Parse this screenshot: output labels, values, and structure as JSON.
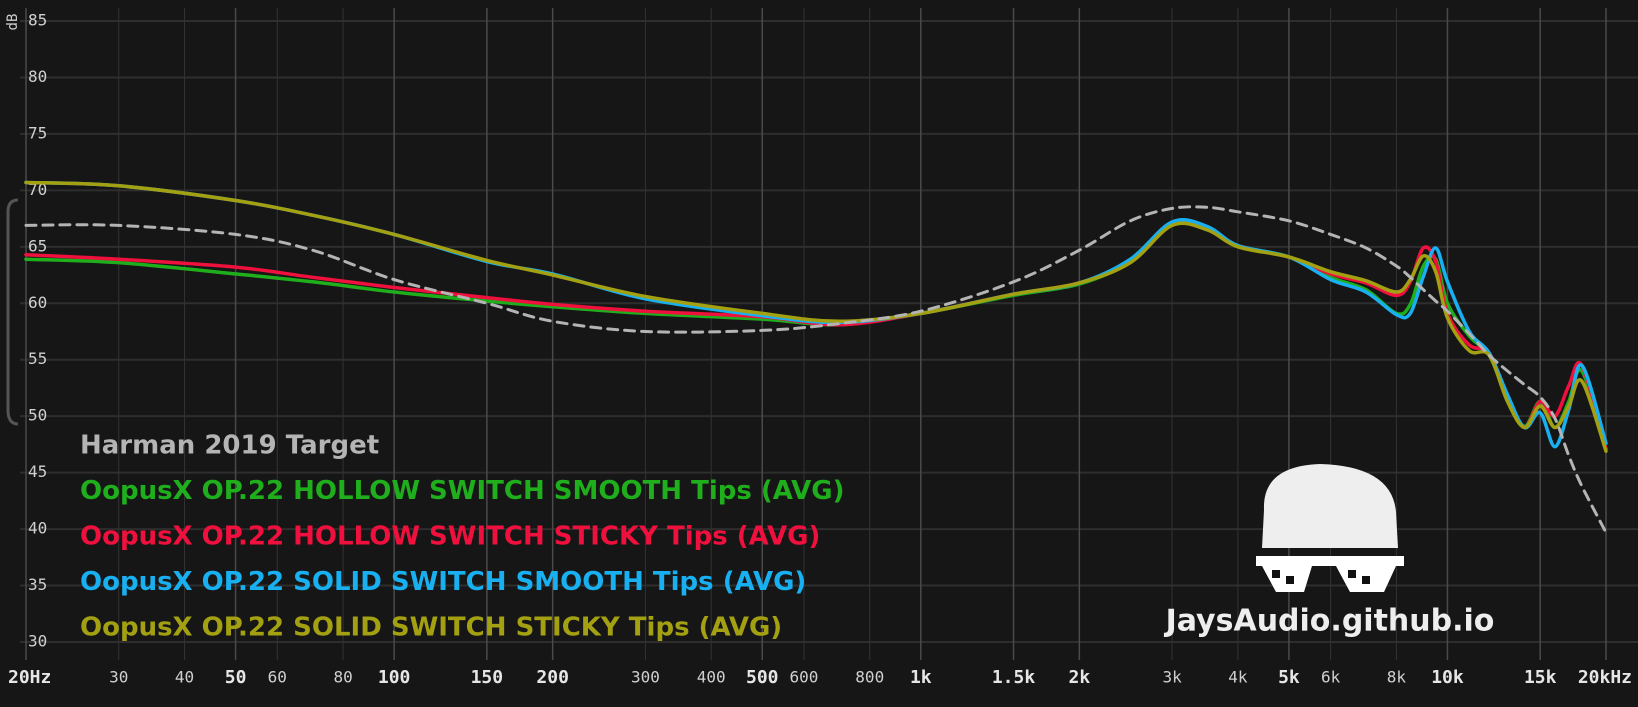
{
  "chart_data": {
    "type": "line",
    "xscale": "log",
    "ylabel": "dB",
    "xlim": [
      20,
      20000
    ],
    "ylim": [
      30,
      85
    ],
    "grid": true,
    "xticks": [
      {
        "value": 20,
        "label": "20Hz"
      },
      30,
      40,
      50,
      60,
      80,
      100,
      150,
      200,
      300,
      400,
      500,
      600,
      800,
      {
        "value": 1000,
        "label": "1k"
      },
      {
        "value": 1500,
        "label": "1.5k"
      },
      {
        "value": 2000,
        "label": "2k"
      },
      {
        "value": 3000,
        "label": "3k"
      },
      {
        "value": 4000,
        "label": "4k"
      },
      {
        "value": 5000,
        "label": "5k"
      },
      {
        "value": 6000,
        "label": "6k"
      },
      {
        "value": 8000,
        "label": "8k"
      },
      {
        "value": 10000,
        "label": "10k"
      },
      {
        "value": 15000,
        "label": "15k"
      },
      {
        "value": 20000,
        "label": "20kHz"
      }
    ],
    "yticks": [
      30,
      35,
      40,
      45,
      50,
      55,
      60,
      65,
      70,
      75,
      80,
      85
    ],
    "x": [
      20,
      30,
      50,
      70,
      100,
      150,
      200,
      300,
      500,
      700,
      1000,
      1500,
      2000,
      2500,
      3000,
      3500,
      4000,
      5000,
      6000,
      7000,
      8000,
      8500,
      9000,
      9500,
      10000,
      11000,
      12000,
      13000,
      14000,
      15000,
      16000,
      17000,
      18000,
      20000
    ],
    "series": [
      {
        "name": "Harman 2019 Target",
        "color": "#b4b4b4",
        "dashed": true,
        "values": [
          66.9,
          66.9,
          66.1,
          64.7,
          62.1,
          60.0,
          58.4,
          57.5,
          57.6,
          58.2,
          59.3,
          61.9,
          64.7,
          67.3,
          68.4,
          68.5,
          68.1,
          67.3,
          66.1,
          64.9,
          63.3,
          62.3,
          61.2,
          60.2,
          59.3,
          57.3,
          55.4,
          54.0,
          52.8,
          51.7,
          49.8,
          46.5,
          43.8,
          39.7
        ]
      },
      {
        "name": "OopusX OP.22 HOLLOW SWITCH SMOOTH Tips (AVG)",
        "color": "#1fae1c",
        "values": [
          63.9,
          63.6,
          62.6,
          61.9,
          61.0,
          60.2,
          59.7,
          59.1,
          58.6,
          58.1,
          59.1,
          60.7,
          61.7,
          63.7,
          67.0,
          66.6,
          65.1,
          64.1,
          62.3,
          61.2,
          59.1,
          59.9,
          63.3,
          63.9,
          60.0,
          57.1,
          55.4,
          51.7,
          49.1,
          51.3,
          49.0,
          51.3,
          54.0,
          47.1
        ]
      },
      {
        "name": "OopusX OP.22 HOLLOW SWITCH STICKY Tips (AVG)",
        "color": "#f0103e",
        "values": [
          64.3,
          63.9,
          63.2,
          62.3,
          61.4,
          60.5,
          59.9,
          59.3,
          58.8,
          58.1,
          59.1,
          60.8,
          61.8,
          63.7,
          67.0,
          66.6,
          65.1,
          64.1,
          62.6,
          61.8,
          60.7,
          61.9,
          64.9,
          63.7,
          59.1,
          56.3,
          55.6,
          51.7,
          49.0,
          51.3,
          50.0,
          52.7,
          54.5,
          47.1
        ]
      },
      {
        "name": "OopusX OP.22 SOLID SWITCH SMOOTH Tips (AVG)",
        "color": "#18b0f0",
        "values": [
          70.7,
          70.4,
          69.1,
          67.8,
          66.1,
          63.7,
          62.6,
          60.4,
          58.9,
          58.3,
          59.1,
          60.8,
          61.8,
          63.9,
          67.2,
          66.8,
          65.1,
          64.1,
          62.1,
          61.0,
          59.0,
          59.1,
          62.4,
          64.9,
          61.9,
          57.5,
          55.6,
          51.9,
          49.0,
          50.3,
          47.3,
          50.6,
          54.5,
          47.6
        ]
      },
      {
        "name": "OopusX OP.22 SOLID SWITCH STICKY Tips (AVG)",
        "color": "#a3a012",
        "values": [
          70.7,
          70.4,
          69.1,
          67.8,
          66.1,
          63.8,
          62.5,
          60.6,
          59.1,
          58.4,
          59.1,
          60.8,
          61.8,
          63.6,
          66.9,
          66.5,
          65.0,
          64.1,
          62.8,
          62.0,
          61.0,
          62.1,
          64.2,
          62.8,
          58.7,
          55.8,
          55.4,
          51.3,
          49.0,
          50.9,
          49.0,
          50.9,
          53.1,
          46.9
        ]
      }
    ],
    "watermark": "JaysAudio.github.io"
  }
}
